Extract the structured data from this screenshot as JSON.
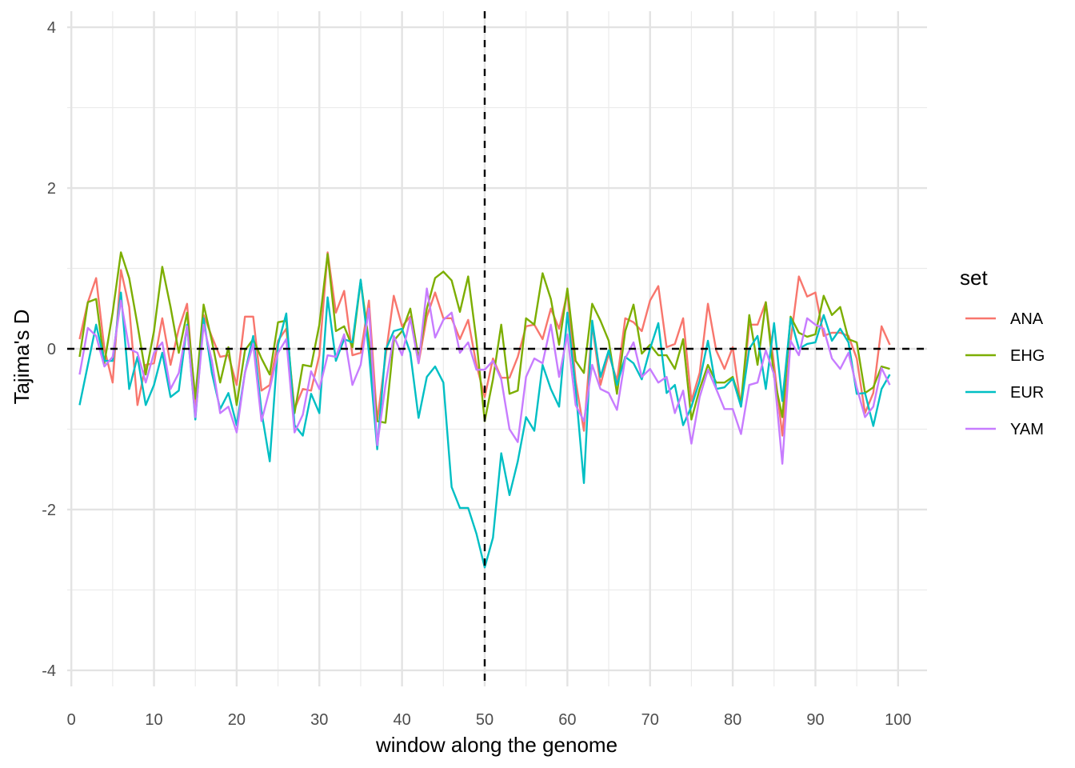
{
  "chart_data": {
    "type": "line",
    "xlabel": "window along the genome",
    "ylabel": "Tajima's D",
    "xlim": [
      -0.5,
      103.5
    ],
    "ylim": [
      -4.2,
      4.2
    ],
    "x_ticks": [
      0,
      10,
      20,
      30,
      40,
      50,
      60,
      70,
      80,
      90,
      100
    ],
    "y_ticks": [
      -4,
      -2,
      0,
      2,
      4
    ],
    "x_tick_labels": [
      "0",
      "10",
      "20",
      "30",
      "40",
      "50",
      "60",
      "70",
      "80",
      "90",
      "100"
    ],
    "y_tick_labels": [
      "-4",
      "-2",
      "0",
      "2",
      "4"
    ],
    "grid": true,
    "hline": 0,
    "vline": 50,
    "legend": {
      "title": "set",
      "position": "right"
    },
    "x": [
      1,
      2,
      3,
      4,
      5,
      6,
      7,
      8,
      9,
      10,
      11,
      12,
      13,
      14,
      15,
      16,
      17,
      18,
      19,
      20,
      21,
      22,
      23,
      24,
      25,
      26,
      27,
      28,
      29,
      30,
      31,
      32,
      33,
      34,
      35,
      36,
      37,
      38,
      39,
      40,
      41,
      42,
      43,
      44,
      45,
      46,
      47,
      48,
      49,
      50,
      51,
      52,
      53,
      54,
      55,
      56,
      57,
      58,
      59,
      60,
      61,
      62,
      63,
      64,
      65,
      66,
      67,
      68,
      69,
      70,
      71,
      72,
      73,
      74,
      75,
      76,
      77,
      78,
      79,
      80,
      81,
      82,
      83,
      84,
      85,
      86,
      87,
      88,
      89,
      90,
      91,
      92,
      93,
      94,
      95,
      96,
      97,
      98,
      99
    ],
    "series": [
      {
        "name": "ANA",
        "color": "#F8766D",
        "values": [
          0.12,
          0.58,
          0.88,
          0.0,
          -0.42,
          0.98,
          0.52,
          -0.7,
          -0.2,
          -0.18,
          0.38,
          -0.2,
          0.25,
          0.56,
          -0.7,
          0.42,
          0.15,
          -0.1,
          -0.08,
          -0.45,
          0.4,
          0.4,
          -0.52,
          -0.45,
          0.1,
          0.25,
          -0.75,
          -0.5,
          -0.52,
          -0.08,
          1.2,
          0.45,
          0.72,
          -0.08,
          -0.05,
          0.6,
          -0.9,
          -0.1,
          0.66,
          0.28,
          0.4,
          -0.18,
          0.4,
          0.7,
          0.38,
          0.38,
          0.12,
          0.36,
          -0.2,
          -0.6,
          -0.12,
          -0.36,
          -0.36,
          -0.1,
          0.28,
          0.3,
          0.12,
          0.5,
          0.25,
          0.7,
          -0.4,
          -1.02,
          0.3,
          -0.45,
          -0.06,
          -0.4,
          0.38,
          0.33,
          0.22,
          0.6,
          0.78,
          0.02,
          0.06,
          0.38,
          -0.65,
          -0.3,
          0.56,
          -0.02,
          -0.25,
          0.02,
          -0.72,
          0.3,
          0.3,
          0.58,
          -0.2,
          -1.08,
          0.1,
          0.9,
          0.65,
          0.7,
          0.16,
          0.2,
          0.2,
          0.16,
          -0.12,
          -0.8,
          -0.55,
          0.28,
          0.05
        ]
      },
      {
        "name": "EHG",
        "color": "#7CAE00",
        "values": [
          -0.1,
          0.58,
          0.62,
          -0.18,
          0.45,
          1.2,
          0.88,
          0.3,
          -0.32,
          0.22,
          1.02,
          0.52,
          -0.05,
          0.45,
          -0.62,
          0.55,
          0.1,
          -0.42,
          0.02,
          -0.7,
          -0.02,
          0.12,
          -0.12,
          -0.32,
          0.33,
          0.35,
          -0.8,
          -0.2,
          -0.22,
          0.3,
          1.18,
          0.22,
          0.28,
          0.02,
          0.85,
          0.08,
          -0.9,
          -0.92,
          0.1,
          0.22,
          0.5,
          -0.12,
          0.5,
          0.88,
          0.96,
          0.85,
          0.46,
          0.9,
          0.1,
          -0.9,
          -0.38,
          0.3,
          -0.56,
          -0.52,
          0.38,
          0.3,
          0.94,
          0.62,
          0.05,
          0.75,
          -0.15,
          -0.3,
          0.56,
          0.35,
          0.1,
          -0.56,
          0.22,
          0.55,
          -0.06,
          0.05,
          -0.08,
          -0.08,
          -0.25,
          0.12,
          -0.88,
          -0.5,
          -0.2,
          -0.42,
          -0.42,
          -0.35,
          -0.68,
          0.42,
          -0.2,
          0.58,
          -0.35,
          -0.85,
          0.4,
          0.2,
          0.15,
          0.18,
          0.66,
          0.42,
          0.52,
          0.12,
          0.08,
          -0.55,
          -0.48,
          -0.22,
          -0.25
        ]
      },
      {
        "name": "EUR",
        "color": "#00BFC4",
        "values": [
          -0.7,
          -0.2,
          0.3,
          -0.15,
          -0.15,
          0.7,
          -0.5,
          -0.1,
          -0.7,
          -0.45,
          -0.05,
          -0.6,
          -0.52,
          0.3,
          -0.88,
          0.38,
          -0.3,
          -0.75,
          -0.55,
          -0.95,
          -0.3,
          0.16,
          -0.78,
          -1.4,
          0.05,
          0.44,
          -0.95,
          -1.08,
          -0.56,
          -0.8,
          0.64,
          -0.15,
          0.12,
          0.08,
          0.86,
          -0.05,
          -1.25,
          -0.02,
          0.22,
          0.25,
          -0.05,
          -0.86,
          -0.35,
          -0.22,
          -0.42,
          -1.72,
          -1.98,
          -1.98,
          -2.3,
          -2.72,
          -2.35,
          -1.3,
          -1.82,
          -1.4,
          -0.85,
          -1.02,
          -0.2,
          -0.5,
          -0.72,
          0.45,
          -0.5,
          -1.67,
          0.35,
          -0.35,
          -0.02,
          -0.45,
          -0.1,
          -0.18,
          -0.38,
          0.0,
          0.32,
          -0.55,
          -0.45,
          -0.95,
          -0.72,
          -0.4,
          0.1,
          -0.5,
          -0.48,
          -0.37,
          -0.72,
          0.0,
          0.16,
          -0.5,
          0.32,
          -0.65,
          0.38,
          0.0,
          0.06,
          0.08,
          0.42,
          0.1,
          0.25,
          0.08,
          -0.56,
          -0.55,
          -0.96,
          -0.5,
          -0.32
        ]
      },
      {
        "name": "YAM",
        "color": "#C77CFF",
        "values": [
          -0.32,
          0.26,
          0.16,
          -0.22,
          -0.1,
          0.6,
          0.0,
          -0.05,
          -0.42,
          -0.05,
          0.08,
          -0.5,
          -0.3,
          0.28,
          -0.85,
          0.3,
          -0.15,
          -0.8,
          -0.72,
          -1.04,
          -0.3,
          0.06,
          -0.9,
          -0.5,
          -0.05,
          0.12,
          -1.04,
          -0.82,
          -0.28,
          -0.5,
          -0.08,
          -0.1,
          0.18,
          -0.45,
          -0.2,
          0.5,
          -1.2,
          -0.45,
          0.16,
          -0.08,
          0.38,
          -0.18,
          0.75,
          0.14,
          0.36,
          0.45,
          -0.05,
          0.08,
          -0.26,
          -0.26,
          -0.15,
          -0.38,
          -1.0,
          -1.16,
          -0.35,
          -0.12,
          -0.18,
          0.3,
          -0.35,
          0.18,
          -0.7,
          -0.9,
          -0.2,
          -0.5,
          -0.55,
          -0.76,
          -0.12,
          0.08,
          -0.35,
          -0.25,
          -0.42,
          -0.35,
          -0.8,
          -0.52,
          -1.18,
          -0.6,
          -0.26,
          -0.5,
          -0.75,
          -0.75,
          -1.06,
          -0.45,
          -0.42,
          -0.02,
          -0.32,
          -1.43,
          0.1,
          -0.08,
          0.38,
          0.3,
          0.25,
          -0.12,
          -0.25,
          -0.05,
          -0.48,
          -0.85,
          -0.72,
          -0.24,
          -0.45
        ]
      }
    ]
  }
}
